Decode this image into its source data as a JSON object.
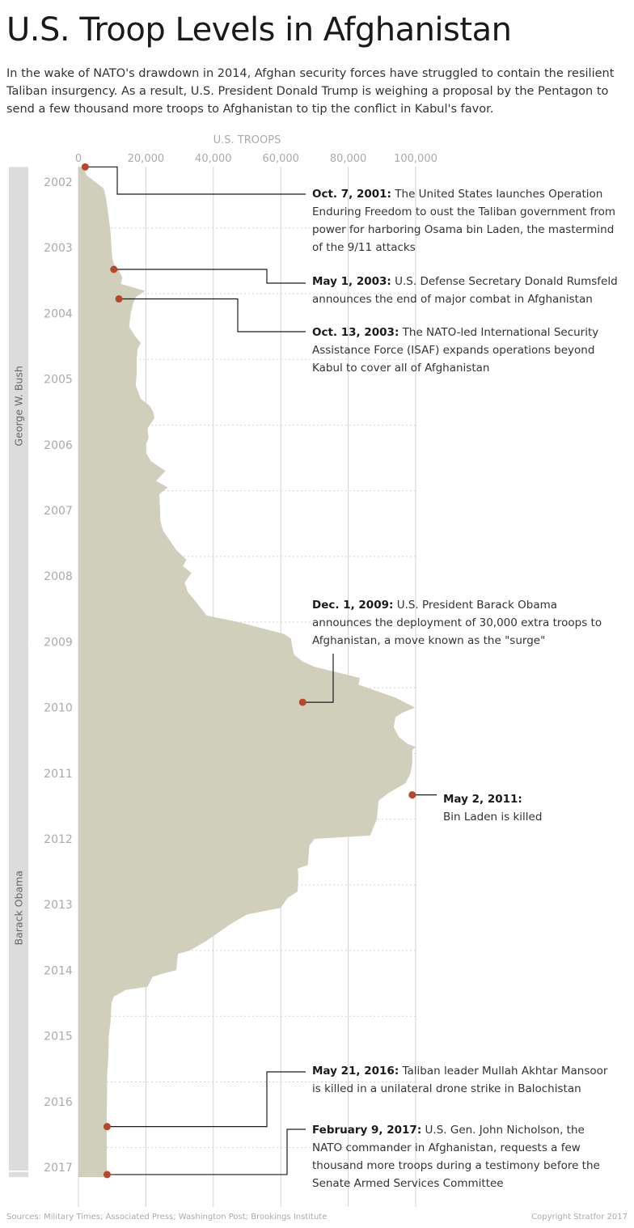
{
  "title": "U.S. Troop Levels in Afghanistan",
  "intro": "In the wake of NATO's drawdown in 2014, Afghan security forces have struggled to contain the resilient Taliban insurgency. As a result, U.S. President Donald Trump is weighing a proposal by the Pentagon to send a few thousand more troops to Afghanistan to tip the conflict in Kabul's favor.",
  "colors": {
    "area_fill": "#cfcfbb",
    "marker": "#b5482a",
    "presidency_band": "#dcdcdc",
    "grid": "#d2d2d2",
    "muted_text": "#aaaaaa",
    "leader_line": "#1a1a1a"
  },
  "chart_data": {
    "type": "area",
    "orientation": "vertical-time",
    "xlabel": "U.S. TROOPS",
    "x_ticks": [
      0,
      20000,
      40000,
      60000,
      80000,
      100000
    ],
    "x_tick_labels": [
      "0",
      "20,000",
      "40,000",
      "60,000",
      "80,000",
      "100,000"
    ],
    "xlim": [
      0,
      100000
    ],
    "time_range": [
      2001.77,
      2017.15
    ],
    "year_labels": [
      "2002",
      "2003",
      "2004",
      "2005",
      "2006",
      "2007",
      "2008",
      "2009",
      "2010",
      "2011",
      "2012",
      "2013",
      "2014",
      "2015",
      "2016",
      "2017"
    ],
    "grid": true,
    "series": [
      {
        "points": [
          [
            2001.77,
            1300
          ],
          [
            2001.9,
            2500
          ],
          [
            2002.0,
            5000
          ],
          [
            2002.1,
            7500
          ],
          [
            2002.25,
            8200
          ],
          [
            2002.4,
            8600
          ],
          [
            2002.55,
            9000
          ],
          [
            2002.75,
            9500
          ],
          [
            2003.0,
            9800
          ],
          [
            2003.15,
            10000
          ],
          [
            2003.25,
            10500
          ],
          [
            2003.35,
            12000
          ],
          [
            2003.45,
            13000
          ],
          [
            2003.55,
            12600
          ],
          [
            2003.66,
            19800
          ],
          [
            2003.75,
            17000
          ],
          [
            2003.85,
            16200
          ],
          [
            2004.0,
            15500
          ],
          [
            2004.2,
            15000
          ],
          [
            2004.35,
            16800
          ],
          [
            2004.45,
            18500
          ],
          [
            2004.55,
            17500
          ],
          [
            2004.7,
            17300
          ],
          [
            2004.9,
            17300
          ],
          [
            2005.1,
            17000
          ],
          [
            2005.3,
            18500
          ],
          [
            2005.4,
            21000
          ],
          [
            2005.5,
            22200
          ],
          [
            2005.6,
            22500
          ],
          [
            2005.75,
            20500
          ],
          [
            2005.9,
            20800
          ],
          [
            2006.0,
            20000
          ],
          [
            2006.1,
            19800
          ],
          [
            2006.25,
            21500
          ],
          [
            2006.4,
            25800
          ],
          [
            2006.55,
            23000
          ],
          [
            2006.65,
            26500
          ],
          [
            2006.75,
            24000
          ],
          [
            2007.0,
            24200
          ],
          [
            2007.15,
            24300
          ],
          [
            2007.3,
            25000
          ],
          [
            2007.45,
            27000
          ],
          [
            2007.6,
            29000
          ],
          [
            2007.75,
            32000
          ],
          [
            2007.85,
            31000
          ],
          [
            2007.95,
            33500
          ],
          [
            2008.1,
            31500
          ],
          [
            2008.25,
            32500
          ],
          [
            2008.4,
            35000
          ],
          [
            2008.6,
            38000
          ],
          [
            2008.7,
            47500
          ],
          [
            2008.8,
            55000
          ],
          [
            2008.88,
            61000
          ],
          [
            2008.95,
            63000
          ],
          [
            2009.1,
            63500
          ],
          [
            2009.2,
            64000
          ],
          [
            2009.3,
            66500
          ],
          [
            2009.38,
            70000
          ],
          [
            2009.45,
            75500
          ],
          [
            2009.55,
            83500
          ],
          [
            2009.65,
            83000
          ],
          [
            2009.85,
            94000
          ],
          [
            2010.0,
            99800
          ],
          [
            2010.08,
            96000
          ],
          [
            2010.15,
            94000
          ],
          [
            2010.3,
            93500
          ],
          [
            2010.45,
            95000
          ],
          [
            2010.55,
            97500
          ],
          [
            2010.6,
            100000
          ],
          [
            2010.65,
            99000
          ],
          [
            2010.85,
            99000
          ],
          [
            2011.0,
            98500
          ],
          [
            2011.15,
            97000
          ],
          [
            2011.3,
            92000
          ],
          [
            2011.42,
            89000
          ],
          [
            2011.7,
            88500
          ],
          [
            2011.95,
            86500
          ],
          [
            2012.0,
            70000
          ],
          [
            2012.1,
            68500
          ],
          [
            2012.4,
            68000
          ],
          [
            2012.45,
            65000
          ],
          [
            2012.55,
            65200
          ],
          [
            2012.8,
            65000
          ],
          [
            2012.9,
            62000
          ],
          [
            2013.05,
            60000
          ],
          [
            2013.15,
            50000
          ],
          [
            2013.3,
            45000
          ],
          [
            2013.55,
            38000
          ],
          [
            2013.7,
            33000
          ],
          [
            2013.75,
            29500
          ],
          [
            2014.0,
            29000
          ],
          [
            2014.05,
            25000
          ],
          [
            2014.1,
            22000
          ],
          [
            2014.25,
            20500
          ],
          [
            2014.3,
            14000
          ],
          [
            2014.4,
            10500
          ],
          [
            2014.5,
            9800
          ],
          [
            2014.8,
            9500
          ],
          [
            2015.0,
            9000
          ],
          [
            2015.3,
            8900
          ],
          [
            2015.6,
            8500
          ],
          [
            2015.9,
            8500
          ],
          [
            2016.2,
            8400
          ],
          [
            2016.6,
            8400
          ],
          [
            2017.15,
            8400
          ]
        ]
      }
    ],
    "presidencies": [
      {
        "name": "George W. Bush",
        "start": 2001.77,
        "end": 2009.05
      },
      {
        "name": "Barack Obama",
        "start": 2009.05,
        "end": 2017.05
      },
      {
        "name": "",
        "start": 2017.07,
        "end": 2017.15
      }
    ],
    "events": [
      {
        "date": "Oct. 7, 2001:",
        "text": "The United States launches Operation Enduring Freedom to oust the Taliban government from power for harboring Osama bin Laden, the mastermind of the 9/11 attacks",
        "t": 2001.77,
        "troops": 2000
      },
      {
        "date": "May 1, 2003:",
        "text": "U.S. Defense Secretary Donald Rumsfeld announces the end of major combat in Afghanistan",
        "t": 2003.33,
        "troops": 10500
      },
      {
        "date": "Oct. 13, 2003:",
        "text": "The NATO-led International Security Assistance Force (ISAF) expands operations beyond Kabul to cover all of Afghanistan",
        "t": 2003.78,
        "troops": 12000
      },
      {
        "date": "Dec. 1, 2009:",
        "text": "U.S. President Barack Obama announces the deployment of 30,000 extra troops to Afghanistan, a move known as the \"surge\"",
        "t": 2009.92,
        "troops": 66500
      },
      {
        "date": "May 2, 2011:",
        "text": "Bin Laden is killed",
        "t": 2011.33,
        "troops": 99000
      },
      {
        "date": "May 21, 2016:",
        "text": "Taliban leader Mullah Akhtar Mansoor is killed in a unilateral drone strike in Balochistan",
        "t": 2016.38,
        "troops": 8500
      },
      {
        "date": "February 9, 2017:",
        "text": "U.S. Gen. John Nicholson, the NATO commander in Afghanistan, requests a few thousand more troops during a testimony before the Senate Armed Services Committee",
        "t": 2017.11,
        "troops": 8500
      }
    ]
  },
  "footer": {
    "sources": "Sources: Military Times; Associated Press; Washington Post; Brookings Institute",
    "copyright": "Copyright Stratfor 2017"
  }
}
